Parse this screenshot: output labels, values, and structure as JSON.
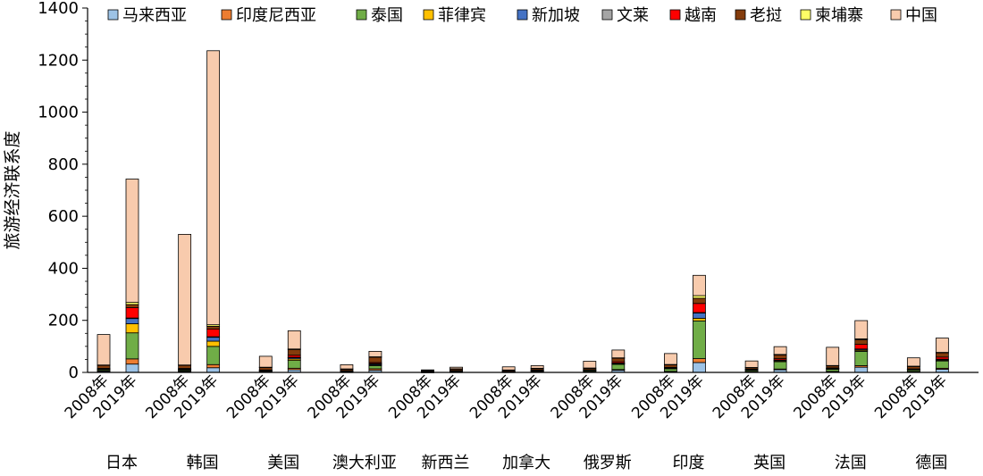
{
  "chart_data": {
    "type": "bar",
    "stacked": true,
    "ylabel": "旅游经济联系度",
    "ylim": [
      0,
      1400
    ],
    "yticks": [
      0,
      200,
      400,
      600,
      800,
      1000,
      1200,
      1400
    ],
    "legend_position": "top",
    "years": [
      "2008年",
      "2019年"
    ],
    "countries": [
      "日本",
      "韩国",
      "美国",
      "澳大利亚",
      "新西兰",
      "加拿大",
      "俄罗斯",
      "印度",
      "英国",
      "法国",
      "德国"
    ],
    "series": [
      {
        "name": "马来西亚",
        "color": "#9dc3e6",
        "values": [
          [
            4,
            32
          ],
          [
            3,
            18
          ],
          [
            2,
            10
          ],
          [
            1,
            8
          ],
          [
            0.5,
            1
          ],
          [
            1,
            2
          ],
          [
            2,
            8
          ],
          [
            3,
            38
          ],
          [
            3,
            10
          ],
          [
            3,
            20
          ],
          [
            3,
            12
          ]
        ]
      },
      {
        "name": "印度尼西亚",
        "color": "#ed7d31",
        "values": [
          [
            2,
            20
          ],
          [
            2,
            12
          ],
          [
            1,
            6
          ],
          [
            0.5,
            6
          ],
          [
            0.3,
            1
          ],
          [
            0.5,
            1
          ],
          [
            1,
            3
          ],
          [
            1,
            15
          ],
          [
            1,
            3
          ],
          [
            1,
            6
          ],
          [
            1,
            4
          ]
        ]
      },
      {
        "name": "泰国",
        "color": "#70ad47",
        "values": [
          [
            4,
            100
          ],
          [
            4,
            70
          ],
          [
            3,
            30
          ],
          [
            2,
            12
          ],
          [
            1,
            2
          ],
          [
            1,
            3
          ],
          [
            4,
            20
          ],
          [
            10,
            145
          ],
          [
            5,
            28
          ],
          [
            8,
            55
          ],
          [
            6,
            28
          ]
        ]
      },
      {
        "name": "菲律宾",
        "color": "#ffc000",
        "values": [
          [
            2,
            35
          ],
          [
            2,
            20
          ],
          [
            1,
            6
          ],
          [
            1,
            3
          ],
          [
            0.5,
            1
          ],
          [
            0.5,
            1
          ],
          [
            1,
            2
          ],
          [
            2,
            10
          ],
          [
            1,
            3
          ],
          [
            2,
            4
          ],
          [
            1,
            3
          ]
        ]
      },
      {
        "name": "新加坡",
        "color": "#4472c4",
        "values": [
          [
            1,
            20
          ],
          [
            1,
            15
          ],
          [
            1,
            5
          ],
          [
            1,
            4
          ],
          [
            0.5,
            1
          ],
          [
            0.5,
            1
          ],
          [
            1,
            2
          ],
          [
            1,
            20
          ],
          [
            1,
            3
          ],
          [
            1,
            4
          ],
          [
            1,
            3
          ]
        ]
      },
      {
        "name": "文莱",
        "color": "#a5a5a5",
        "values": [
          [
            0.5,
            2
          ],
          [
            0.5,
            2
          ],
          [
            0.5,
            1
          ],
          [
            0.5,
            1
          ],
          [
            0.2,
            0.5
          ],
          [
            0.2,
            0.5
          ],
          [
            0.5,
            1
          ],
          [
            0.5,
            2
          ],
          [
            0.5,
            1
          ],
          [
            0.5,
            1
          ],
          [
            0.5,
            1
          ]
        ]
      },
      {
        "name": "越南",
        "color": "#ff0000",
        "values": [
          [
            2,
            40
          ],
          [
            3,
            30
          ],
          [
            1,
            8
          ],
          [
            1,
            4
          ],
          [
            0.5,
            1
          ],
          [
            0.5,
            1
          ],
          [
            1,
            5
          ],
          [
            2,
            35
          ],
          [
            1,
            5
          ],
          [
            2,
            18
          ],
          [
            1,
            8
          ]
        ]
      },
      {
        "name": "老挝",
        "color": "#843c0c",
        "values": [
          [
            12,
            12
          ],
          [
            12,
            10
          ],
          [
            10,
            22
          ],
          [
            6,
            20
          ],
          [
            4,
            6
          ],
          [
            5,
            6
          ],
          [
            6,
            14
          ],
          [
            10,
            20
          ],
          [
            6,
            14
          ],
          [
            8,
            18
          ],
          [
            10,
            16
          ]
        ]
      },
      {
        "name": "柬埔寨",
        "color": "#ffff66",
        "values": [
          [
            1,
            8
          ],
          [
            1,
            6
          ],
          [
            0.5,
            2
          ],
          [
            0.5,
            2
          ],
          [
            0.2,
            0.5
          ],
          [
            0.2,
            0.5
          ],
          [
            0.5,
            1
          ],
          [
            1,
            10
          ],
          [
            0.5,
            2
          ],
          [
            1,
            3
          ],
          [
            0.5,
            2
          ]
        ]
      },
      {
        "name": "中国",
        "color": "#f8cbad",
        "values": [
          [
            117,
            474
          ],
          [
            502,
            1053
          ],
          [
            42,
            70
          ],
          [
            16,
            21
          ],
          [
            2,
            6
          ],
          [
            12,
            10
          ],
          [
            26,
            30
          ],
          [
            42,
            78
          ],
          [
            25,
            30
          ],
          [
            70,
            70
          ],
          [
            32,
            55
          ]
        ]
      }
    ]
  }
}
